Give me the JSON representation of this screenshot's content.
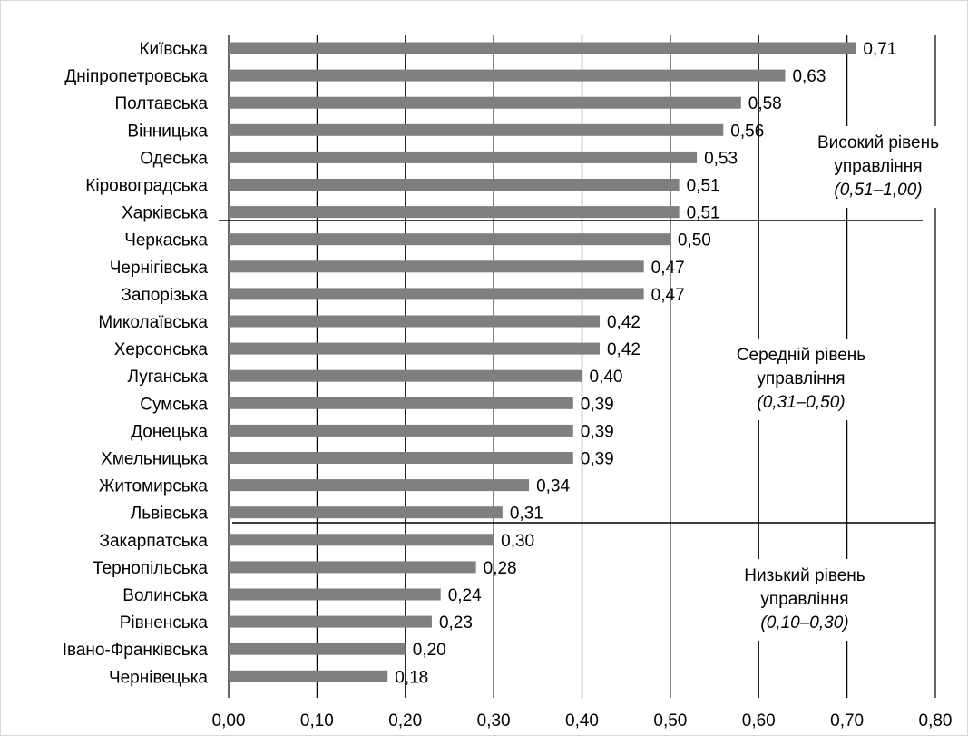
{
  "chart_data": {
    "type": "bar",
    "orientation": "horizontal",
    "categories": [
      "Київська",
      "Дніпропетровська",
      "Полтавська",
      "Вінницька ",
      "Одеська",
      "Кіровоградська",
      "Харківська",
      "Черкаська",
      "Чернігівська",
      "Запорізька",
      "Миколаївська",
      "Херсонська",
      "Луганська",
      "Сумська",
      "Донецька",
      "Хмельницька",
      "Житомирська",
      "Львівська",
      "Закарпатська",
      "Тернопільська",
      "Волинська",
      "Рівненська",
      "Івано-Франківська",
      "Чернівецька"
    ],
    "values": [
      0.71,
      0.63,
      0.58,
      0.56,
      0.53,
      0.51,
      0.51,
      0.5,
      0.47,
      0.47,
      0.42,
      0.42,
      0.4,
      0.39,
      0.39,
      0.39,
      0.34,
      0.31,
      0.3,
      0.28,
      0.24,
      0.23,
      0.2,
      0.18
    ],
    "value_labels": [
      "0,71",
      "0,63",
      "0,58",
      "0,56",
      "0,53",
      "0,51",
      "0,51",
      "0,50",
      "0,47",
      "0,47",
      "0,42",
      "0,42",
      "0,40",
      "0,39",
      "0,39",
      "0,39",
      "0,34",
      "0,31",
      "0,30",
      "0,28",
      "0,24",
      "0,23",
      "0,20",
      "0,18"
    ],
    "xlim": [
      0,
      0.8
    ],
    "x_ticks": [
      0,
      0.1,
      0.2,
      0.3,
      0.4,
      0.5,
      0.6,
      0.7,
      0.8
    ],
    "x_tick_labels": [
      "0,00",
      "0,10",
      "0,20",
      "0,30",
      "0,40",
      "0,50",
      "0,60",
      "0,70",
      "0,80"
    ],
    "grid": true,
    "bar_color": "#7f7f7f",
    "zones": [
      {
        "line1": "Високий рівень",
        "line2": "управління",
        "range": "(0,51–1,00)"
      },
      {
        "line1": "Середній рівень",
        "line2": "управління",
        "range": "(0,31–0,50)"
      },
      {
        "line1": "Низький рівень",
        "line2": "управління",
        "range": "(0,10–0,30)"
      }
    ]
  }
}
